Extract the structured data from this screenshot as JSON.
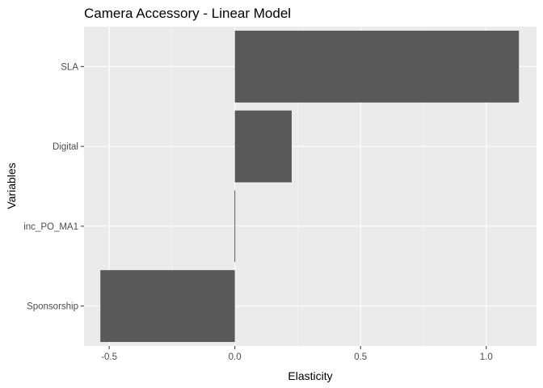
{
  "chart_data": {
    "type": "bar",
    "orientation": "horizontal",
    "title": "Camera Accessory - Linear Model",
    "xlabel": "Elasticity",
    "ylabel": "Variables",
    "categories": [
      "SLA",
      "Digital",
      "inc_PO_MA1",
      "Sponsorship"
    ],
    "values": [
      1.13,
      0.226,
      -0.003,
      -0.535
    ],
    "xlim": [
      -0.6,
      1.2
    ],
    "xticks": [
      -0.5,
      0.0,
      0.5,
      1.0
    ],
    "xtick_labels": [
      "-0.5",
      "0.0",
      "0.5",
      "1.0"
    ],
    "grid": true,
    "legend": "none",
    "colors": {
      "bar": "#595959",
      "panel_background": "#ebebeb",
      "grid_major": "#ffffff",
      "grid_minor": "#f5f5f5",
      "tick_mark": "#333333",
      "tick_text": "#4d4d4d"
    }
  }
}
